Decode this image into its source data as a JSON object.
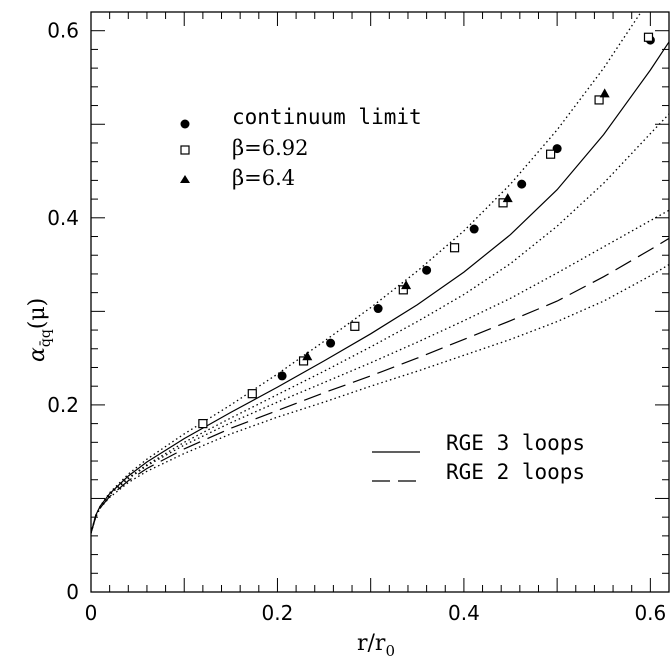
{
  "chart_data": {
    "type": "scatter",
    "xlabel": "r/r",
    "xlabel_sub": "0",
    "ylabel": "α",
    "ylabel_sub": "q̄q",
    "ylabel_arg": "(μ)",
    "xlim": [
      0,
      0.62
    ],
    "ylim": [
      0,
      0.62
    ],
    "x_ticks": [
      {
        "value": 0,
        "label": "0"
      },
      {
        "value": 0.2,
        "label": "0.2"
      },
      {
        "value": 0.4,
        "label": "0.4"
      },
      {
        "value": 0.6,
        "label": "0.6"
      }
    ],
    "y_ticks": [
      {
        "value": 0,
        "label": "0"
      },
      {
        "value": 0.2,
        "label": "0.2"
      },
      {
        "value": 0.4,
        "label": "0.4"
      },
      {
        "value": 0.6,
        "label": "0.6"
      }
    ],
    "legend_points": [
      {
        "marker": "circle",
        "label": "continuum limit"
      },
      {
        "marker": "square",
        "label": "β=6.92"
      },
      {
        "marker": "triangle",
        "label": "β=6.4"
      }
    ],
    "legend_lines": [
      {
        "style": "solid",
        "label": "RGE 3 loops"
      },
      {
        "style": "dashed",
        "label": "RGE 2 loops"
      }
    ],
    "series": [
      {
        "marker": "circle",
        "points": [
          [
            0.205,
            0.231
          ],
          [
            0.257,
            0.266
          ],
          [
            0.308,
            0.303
          ],
          [
            0.36,
            0.344
          ],
          [
            0.411,
            0.388
          ],
          [
            0.462,
            0.436
          ],
          [
            0.5,
            0.474
          ],
          [
            0.6,
            0.59
          ]
        ]
      },
      {
        "marker": "square",
        "points": [
          [
            0.12,
            0.18
          ],
          [
            0.173,
            0.212
          ],
          [
            0.228,
            0.247
          ],
          [
            0.283,
            0.284
          ],
          [
            0.335,
            0.323
          ],
          [
            0.39,
            0.368
          ],
          [
            0.442,
            0.416
          ],
          [
            0.493,
            0.468
          ],
          [
            0.545,
            0.526
          ],
          [
            0.598,
            0.593
          ]
        ]
      },
      {
        "marker": "triangle",
        "points": [
          [
            0.232,
            0.252
          ],
          [
            0.338,
            0.328
          ],
          [
            0.447,
            0.421
          ],
          [
            0.551,
            0.533
          ]
        ]
      }
    ],
    "curves": [
      {
        "style": "solid",
        "points": [
          [
            0,
            0.063
          ],
          [
            0.005,
            0.082
          ],
          [
            0.01,
            0.092
          ],
          [
            0.02,
            0.105
          ],
          [
            0.04,
            0.124
          ],
          [
            0.06,
            0.139
          ],
          [
            0.1,
            0.164
          ],
          [
            0.15,
            0.192
          ],
          [
            0.2,
            0.219
          ],
          [
            0.25,
            0.247
          ],
          [
            0.3,
            0.276
          ],
          [
            0.35,
            0.307
          ],
          [
            0.4,
            0.342
          ],
          [
            0.45,
            0.382
          ],
          [
            0.5,
            0.43
          ],
          [
            0.55,
            0.489
          ],
          [
            0.6,
            0.558
          ],
          [
            0.62,
            0.588
          ]
        ]
      },
      {
        "style": "dotted",
        "points": [
          [
            0,
            0.063
          ],
          [
            0.005,
            0.082
          ],
          [
            0.01,
            0.092
          ],
          [
            0.02,
            0.106
          ],
          [
            0.04,
            0.126
          ],
          [
            0.06,
            0.142
          ],
          [
            0.1,
            0.169
          ],
          [
            0.15,
            0.2
          ],
          [
            0.2,
            0.233
          ],
          [
            0.25,
            0.268
          ],
          [
            0.3,
            0.304
          ],
          [
            0.35,
            0.343
          ],
          [
            0.4,
            0.386
          ],
          [
            0.45,
            0.436
          ],
          [
            0.5,
            0.494
          ],
          [
            0.55,
            0.56
          ],
          [
            0.6,
            0.635
          ]
        ]
      },
      {
        "style": "dotted",
        "points": [
          [
            0,
            0.063
          ],
          [
            0.005,
            0.081
          ],
          [
            0.01,
            0.091
          ],
          [
            0.02,
            0.104
          ],
          [
            0.04,
            0.122
          ],
          [
            0.06,
            0.136
          ],
          [
            0.1,
            0.16
          ],
          [
            0.15,
            0.186
          ],
          [
            0.2,
            0.211
          ],
          [
            0.25,
            0.236
          ],
          [
            0.3,
            0.262
          ],
          [
            0.35,
            0.289
          ],
          [
            0.4,
            0.318
          ],
          [
            0.45,
            0.351
          ],
          [
            0.5,
            0.391
          ],
          [
            0.55,
            0.437
          ],
          [
            0.6,
            0.49
          ],
          [
            0.62,
            0.511
          ]
        ]
      },
      {
        "style": "dotted",
        "points": [
          [
            0,
            0.063
          ],
          [
            0.005,
            0.081
          ],
          [
            0.01,
            0.091
          ],
          [
            0.02,
            0.104
          ],
          [
            0.04,
            0.121
          ],
          [
            0.06,
            0.135
          ],
          [
            0.1,
            0.157
          ],
          [
            0.15,
            0.181
          ],
          [
            0.2,
            0.203
          ],
          [
            0.25,
            0.224
          ],
          [
            0.3,
            0.245
          ],
          [
            0.35,
            0.267
          ],
          [
            0.4,
            0.29
          ],
          [
            0.45,
            0.314
          ],
          [
            0.5,
            0.341
          ],
          [
            0.55,
            0.369
          ],
          [
            0.6,
            0.397
          ],
          [
            0.62,
            0.408
          ]
        ]
      },
      {
        "style": "dashed",
        "points": [
          [
            0,
            0.063
          ],
          [
            0.005,
            0.08
          ],
          [
            0.01,
            0.09
          ],
          [
            0.02,
            0.102
          ],
          [
            0.04,
            0.119
          ],
          [
            0.06,
            0.132
          ],
          [
            0.1,
            0.153
          ],
          [
            0.15,
            0.175
          ],
          [
            0.2,
            0.194
          ],
          [
            0.25,
            0.213
          ],
          [
            0.3,
            0.231
          ],
          [
            0.35,
            0.25
          ],
          [
            0.4,
            0.27
          ],
          [
            0.45,
            0.29
          ],
          [
            0.5,
            0.311
          ],
          [
            0.55,
            0.337
          ],
          [
            0.6,
            0.366
          ],
          [
            0.62,
            0.378
          ]
        ]
      },
      {
        "style": "dotted",
        "points": [
          [
            0,
            0.063
          ],
          [
            0.005,
            0.08
          ],
          [
            0.01,
            0.09
          ],
          [
            0.02,
            0.101
          ],
          [
            0.04,
            0.117
          ],
          [
            0.06,
            0.129
          ],
          [
            0.1,
            0.148
          ],
          [
            0.15,
            0.169
          ],
          [
            0.2,
            0.187
          ],
          [
            0.25,
            0.203
          ],
          [
            0.3,
            0.22
          ],
          [
            0.35,
            0.236
          ],
          [
            0.4,
            0.253
          ],
          [
            0.45,
            0.27
          ],
          [
            0.5,
            0.289
          ],
          [
            0.55,
            0.311
          ],
          [
            0.6,
            0.338
          ],
          [
            0.62,
            0.35
          ]
        ]
      }
    ]
  }
}
